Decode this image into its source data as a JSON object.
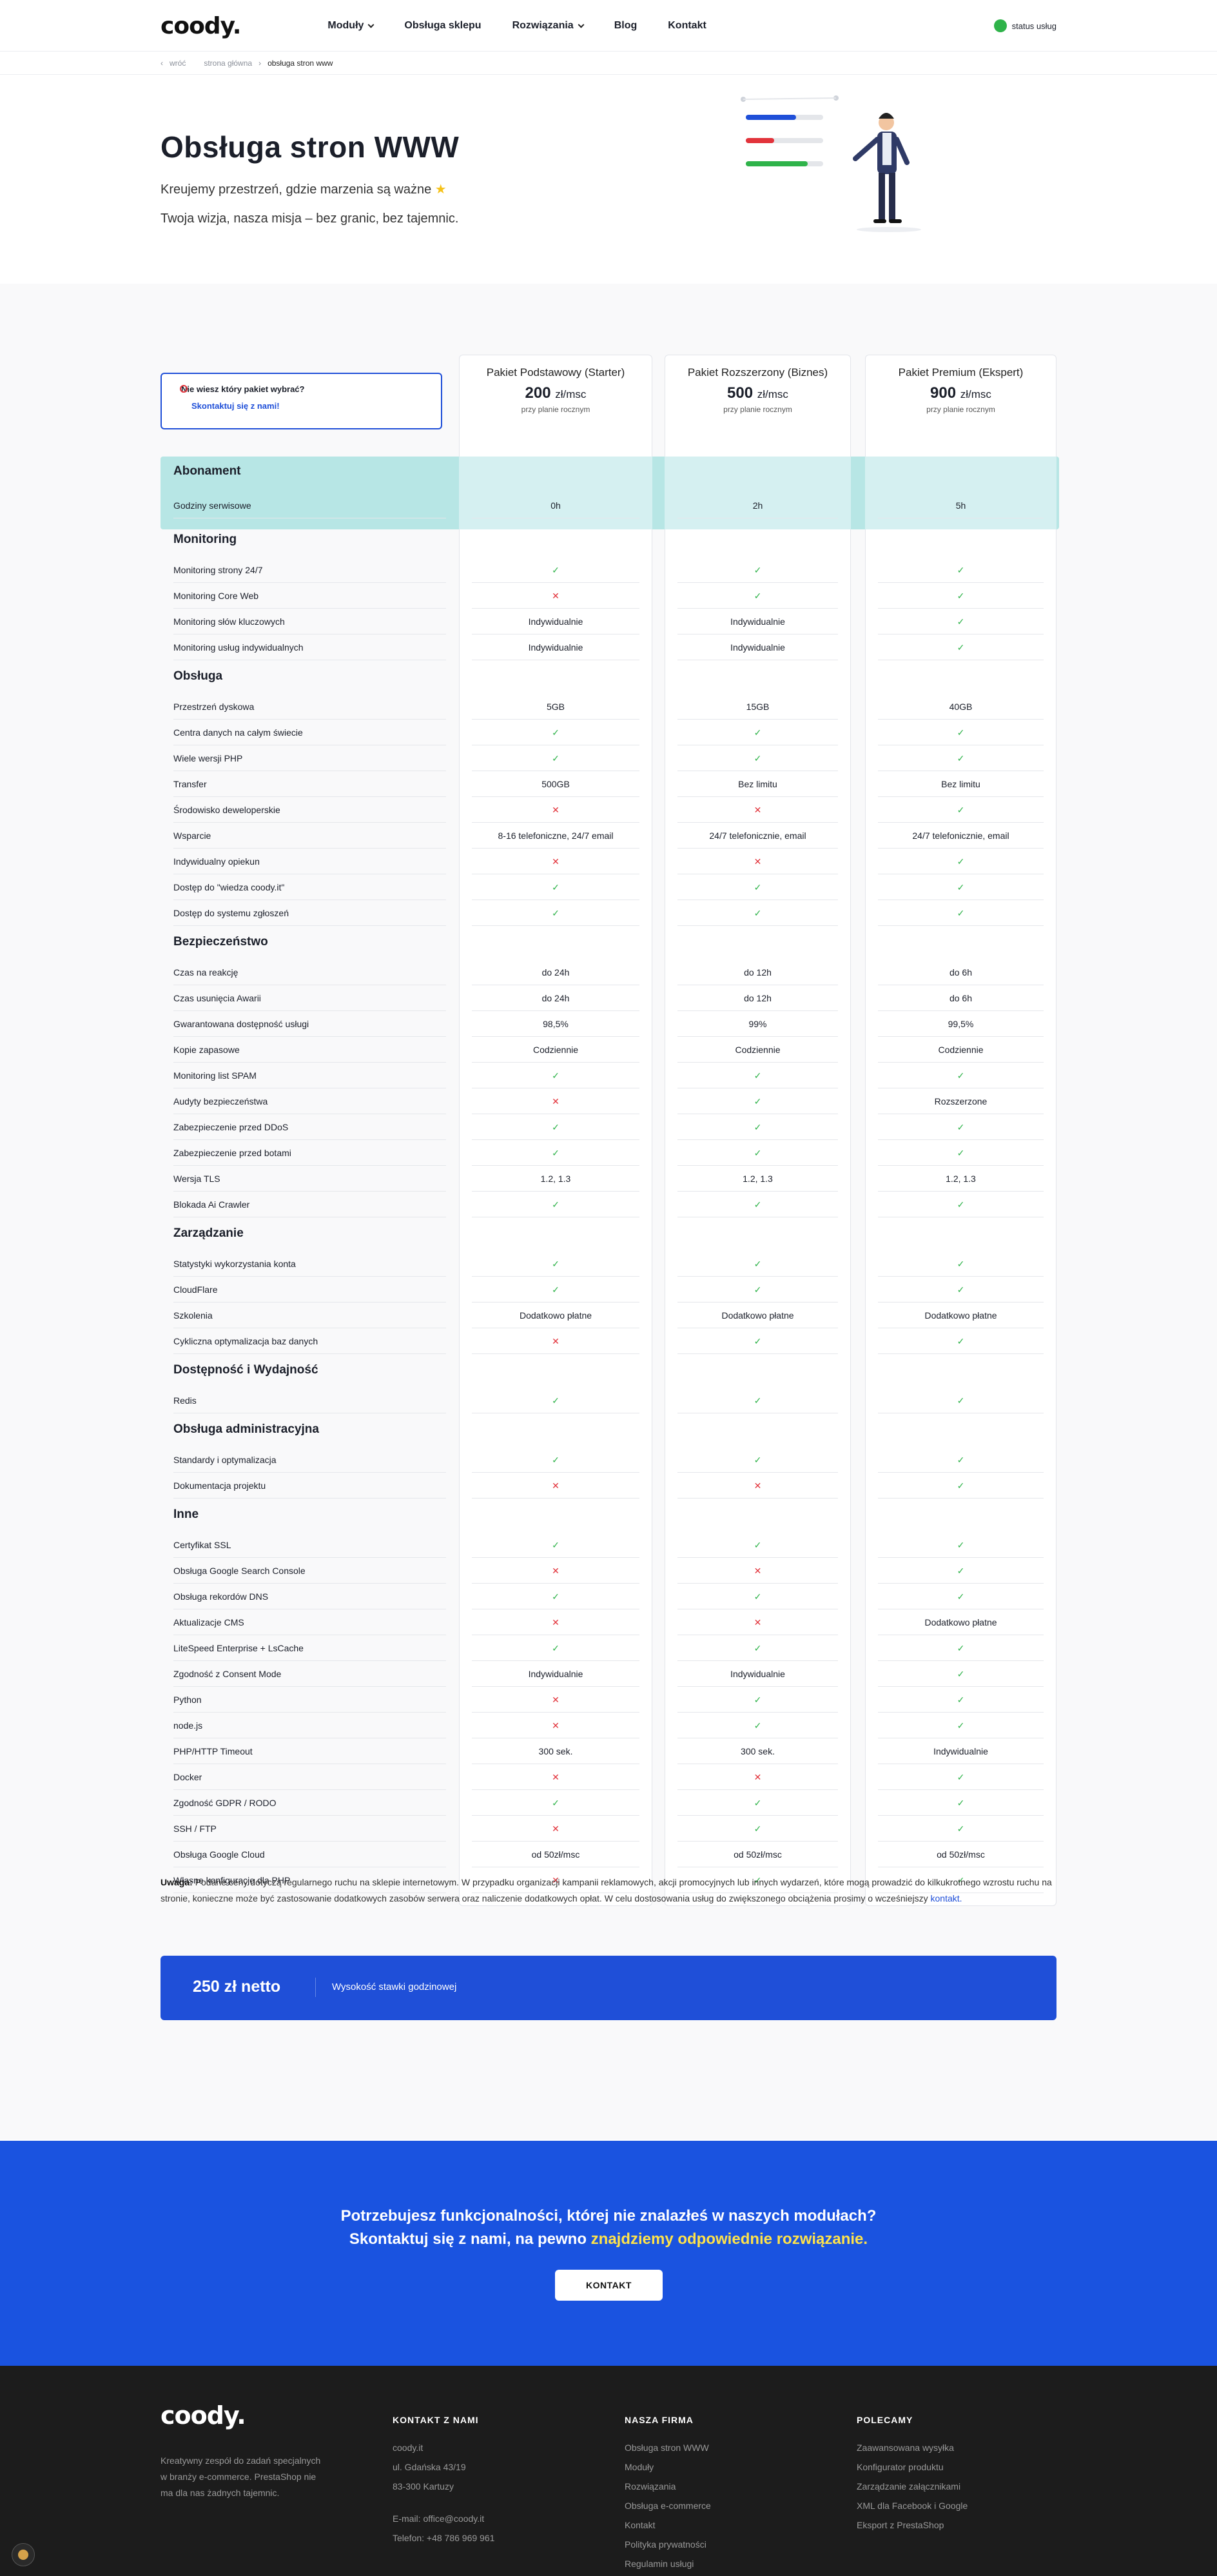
{
  "header": {
    "logo": "coody.",
    "nav": [
      "Moduły",
      "Obsługa sklepu",
      "Rozwiązania",
      "Blog",
      "Kontakt"
    ],
    "status": "status usług"
  },
  "breadcrumb": {
    "back": "wróć",
    "home": "strona główna",
    "current": "obsługa stron www"
  },
  "hero": {
    "title": "Obsługa stron WWW",
    "line1": "Kreujemy przestrzeń, gdzie marzenia są ważne",
    "line2": "Twoja wizja, nasza misja – bez granic, bez tajemnic."
  },
  "helpbox": {
    "question": "Nie wiesz który pakiet wybrać?",
    "link": "Skontaktuj się z nami!"
  },
  "packages": [
    {
      "name": "Pakiet Podstawowy (Starter)",
      "price": "200",
      "unit": "zł/msc",
      "note": "przy planie rocznym"
    },
    {
      "name": "Pakiet Rozszerzony (Biznes)",
      "price": "500",
      "unit": "zł/msc",
      "note": "przy planie rocznym"
    },
    {
      "name": "Pakiet Premium (Ekspert)",
      "price": "900",
      "unit": "zł/msc",
      "note": "przy planie rocznym"
    }
  ],
  "sections": [
    {
      "title": "Abonament",
      "rows": [
        {
          "label": "Godziny serwisowe",
          "values": [
            "0h",
            "2h",
            "5h"
          ]
        }
      ]
    },
    {
      "title": "Monitoring",
      "rows": [
        {
          "label": "Monitoring strony 24/7",
          "values": [
            "yes",
            "yes",
            "yes"
          ]
        },
        {
          "label": "Monitoring Core Web",
          "values": [
            "no",
            "yes",
            "yes"
          ]
        },
        {
          "label": "Monitoring słów kluczowych",
          "values": [
            "Indywidualnie",
            "Indywidualnie",
            "yes"
          ]
        },
        {
          "label": "Monitoring usług indywidualnych",
          "values": [
            "Indywidualnie",
            "Indywidualnie",
            "yes"
          ]
        }
      ]
    },
    {
      "title": "Obsługa",
      "rows": [
        {
          "label": "Przestrzeń dyskowa",
          "values": [
            "5GB",
            "15GB",
            "40GB"
          ]
        },
        {
          "label": "Centra danych na całym świecie",
          "values": [
            "yes",
            "yes",
            "yes"
          ]
        },
        {
          "label": "Wiele wersji PHP",
          "values": [
            "yes",
            "yes",
            "yes"
          ]
        },
        {
          "label": "Transfer",
          "values": [
            "500GB",
            "Bez limitu",
            "Bez limitu"
          ]
        },
        {
          "label": "Środowisko deweloperskie",
          "values": [
            "no",
            "no",
            "yes"
          ]
        },
        {
          "label": "Wsparcie",
          "values": [
            "8-16 telefoniczne, 24/7 email",
            "24/7 telefonicznie, email",
            "24/7 telefonicznie, email"
          ]
        },
        {
          "label": "Indywidualny opiekun",
          "values": [
            "no",
            "no",
            "yes"
          ]
        },
        {
          "label": "Dostęp do \"wiedza coody.it\"",
          "values": [
            "yes",
            "yes",
            "yes"
          ]
        },
        {
          "label": "Dostęp do systemu zgłoszeń",
          "values": [
            "yes",
            "yes",
            "yes"
          ]
        }
      ]
    },
    {
      "title": "Bezpieczeństwo",
      "rows": [
        {
          "label": "Czas na reakcję",
          "values": [
            "do 24h",
            "do 12h",
            "do 6h"
          ]
        },
        {
          "label": "Czas usunięcia Awarii",
          "values": [
            "do 24h",
            "do 12h",
            "do 6h"
          ]
        },
        {
          "label": "Gwarantowana dostępność usługi",
          "values": [
            "98,5%",
            "99%",
            "99,5%"
          ]
        },
        {
          "label": "Kopie zapasowe",
          "values": [
            "Codziennie",
            "Codziennie",
            "Codziennie"
          ]
        },
        {
          "label": "Monitoring list SPAM",
          "values": [
            "yes",
            "yes",
            "yes"
          ]
        },
        {
          "label": "Audyty bezpieczeństwa",
          "values": [
            "no",
            "yes",
            "Rozszerzone"
          ]
        },
        {
          "label": "Zabezpieczenie przed DDoS",
          "values": [
            "yes",
            "yes",
            "yes"
          ]
        },
        {
          "label": "Zabezpieczenie przed botami",
          "values": [
            "yes",
            "yes",
            "yes"
          ]
        },
        {
          "label": "Wersja TLS",
          "values": [
            "1.2, 1.3",
            "1.2, 1.3",
            "1.2, 1.3"
          ]
        },
        {
          "label": "Blokada Ai Crawler",
          "values": [
            "yes",
            "yes",
            "yes"
          ]
        }
      ]
    },
    {
      "title": "Zarządzanie",
      "rows": [
        {
          "label": "Statystyki wykorzystania konta",
          "values": [
            "yes",
            "yes",
            "yes"
          ]
        },
        {
          "label": "CloudFlare",
          "values": [
            "yes",
            "yes",
            "yes"
          ]
        },
        {
          "label": "Szkolenia",
          "values": [
            "Dodatkowo płatne",
            "Dodatkowo płatne",
            "Dodatkowo płatne"
          ]
        },
        {
          "label": "Cykliczna optymalizacja baz danych",
          "values": [
            "no",
            "yes",
            "yes"
          ]
        }
      ]
    },
    {
      "title": "Dostępność i Wydajność",
      "rows": [
        {
          "label": "Redis",
          "values": [
            "yes",
            "yes",
            "yes"
          ]
        }
      ]
    },
    {
      "title": "Obsługa administracyjna",
      "rows": [
        {
          "label": "Standardy i optymalizacja",
          "values": [
            "yes",
            "yes",
            "yes"
          ]
        },
        {
          "label": "Dokumentacja projektu",
          "values": [
            "no",
            "no",
            "yes"
          ]
        }
      ]
    },
    {
      "title": "Inne",
      "rows": [
        {
          "label": "Certyfikat SSL",
          "values": [
            "yes",
            "yes",
            "yes"
          ]
        },
        {
          "label": "Obsługa Google Search Console",
          "values": [
            "no",
            "no",
            "yes"
          ]
        },
        {
          "label": "Obsługa rekordów DNS",
          "values": [
            "yes",
            "yes",
            "yes"
          ]
        },
        {
          "label": "Aktualizacje CMS",
          "values": [
            "no",
            "no",
            "Dodatkowo płatne"
          ]
        },
        {
          "label": "LiteSpeed Enterprise + LsCache",
          "values": [
            "yes",
            "yes",
            "yes"
          ]
        },
        {
          "label": "Zgodność z Consent Mode",
          "values": [
            "Indywidualnie",
            "Indywidualnie",
            "yes"
          ]
        },
        {
          "label": "Python",
          "values": [
            "no",
            "yes",
            "yes"
          ]
        },
        {
          "label": "node.js",
          "values": [
            "no",
            "yes",
            "yes"
          ]
        },
        {
          "label": "PHP/HTTP Timeout",
          "values": [
            "300 sek.",
            "300 sek.",
            "Indywidualnie"
          ]
        },
        {
          "label": "Docker",
          "values": [
            "no",
            "no",
            "yes"
          ]
        },
        {
          "label": "Zgodność GDPR / RODO",
          "values": [
            "yes",
            "yes",
            "yes"
          ]
        },
        {
          "label": "SSH / FTP",
          "values": [
            "no",
            "yes",
            "yes"
          ]
        },
        {
          "label": "Obsługa Google Cloud",
          "values": [
            "od 50zł/msc",
            "od 50zł/msc",
            "od 50zł/msc"
          ]
        },
        {
          "label": "Własne konfiguracje dla PHP",
          "values": [
            "no",
            "yes",
            "yes"
          ]
        }
      ]
    }
  ],
  "note": {
    "label": "Uwaga:",
    "text": "Podane ceny dotyczą regularnego ruchu na sklepie internetowym. W przypadku organizacji kampanii reklamowych, akcji promocyjnych lub innych wydarzeń, które mogą prowadzić do kilkukrotnego wzrostu ruchu na stronie, konieczne może być zastosowanie dodatkowych zasobów serwera oraz naliczenie dodatkowych opłat. W celu dostosowania usług do zwiększonego obciążenia prosimy o wcześniejszy",
    "link": "kontakt."
  },
  "rate": {
    "amount": "250 zł netto",
    "label": "Wysokość stawki godzinowej"
  },
  "cta": {
    "line1": "Potrzebujesz funkcjonalności, której nie znalazłeś w naszych modułach?",
    "line2a": "Skontaktuj się z nami, na pewno",
    "line2b": "znajdziemy odpowiednie rozwiązanie.",
    "button": "KONTAKT"
  },
  "footer": {
    "logo": "coody.",
    "desc": "Kreatywny zespół do zadań specjalnych w branży e-commerce. PrestaShop nie ma dla nas żadnych tajemnic.",
    "cols": [
      {
        "title": "KONTAKT Z NAMI",
        "items": [
          "coody.it",
          "ul. Gdańska 43/19",
          "83-300 Kartuzy",
          "",
          "E-mail: office@coody.it",
          "Telefon: +48 786 969 961"
        ]
      },
      {
        "title": "NASZA FIRMA",
        "items": [
          "Obsługa stron WWW",
          "Moduły",
          "Rozwiązania",
          "Obsługa e-commerce",
          "Kontakt",
          "Polityka prywatności",
          "Regulamin usługi"
        ]
      },
      {
        "title": "POLECAMY",
        "items": [
          "Zaawansowana wysyłka",
          "Konfigurator produktu",
          "Zarządzanie załącznikami",
          "XML dla Facebook i Google",
          "Eksport z PrestaShop"
        ]
      }
    ]
  },
  "colors": {
    "accent": "#1f4fd8",
    "cta": "#1a53e0",
    "ok": "#2fb34a",
    "no": "#e2333b",
    "teal": "#b7e6e5",
    "footer": "#1c1c1c"
  }
}
